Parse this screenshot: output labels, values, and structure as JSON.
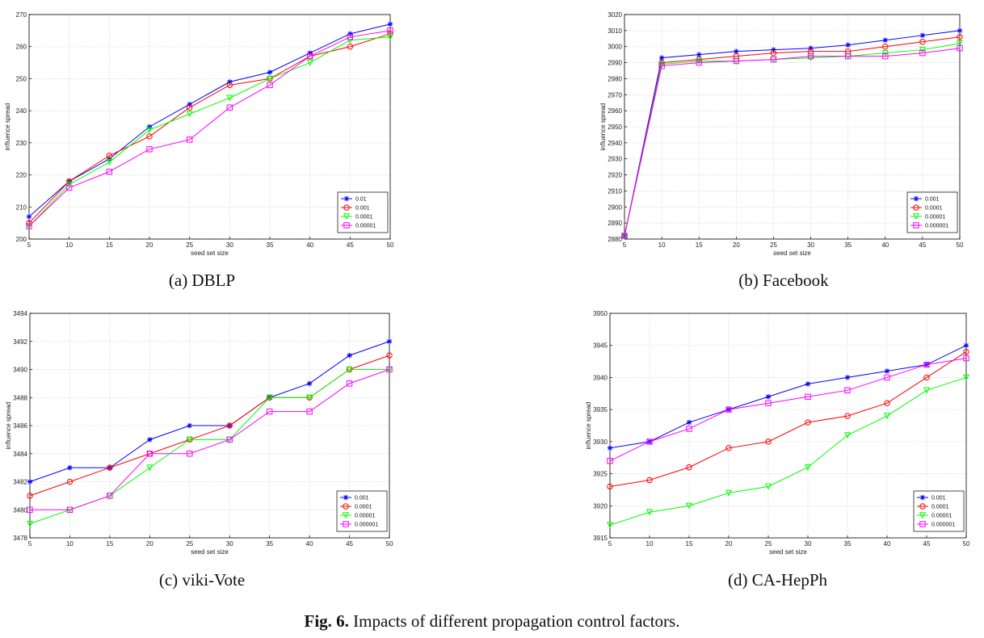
{
  "figure": {
    "label": "Fig. 6.",
    "text": "Impacts of different propagation control factors."
  },
  "panels": [
    {
      "caption": "(a) DBLP",
      "chart_data": {
        "type": "line",
        "title": "",
        "xlabel": "seed set size",
        "ylabel": "influence spread",
        "x": [
          5,
          10,
          15,
          20,
          25,
          30,
          35,
          40,
          45,
          50
        ],
        "xlim": [
          5,
          50
        ],
        "ylim": [
          200,
          270
        ],
        "yticks": [
          200,
          210,
          220,
          230,
          240,
          250,
          260,
          270
        ],
        "grid": true,
        "legend_position": "bottom-right",
        "series": [
          {
            "name": "0.01",
            "color": "#0000ff",
            "marker": "star",
            "values": [
              207,
              218,
              225,
              235,
              242,
              249,
              252,
              258,
              264,
              267
            ]
          },
          {
            "name": "0.001",
            "color": "#ff0000",
            "marker": "circle",
            "values": [
              205,
              218,
              226,
              232,
              241,
              248,
              250,
              257,
              260,
              264
            ]
          },
          {
            "name": "0.0001",
            "color": "#00ff00",
            "marker": "triangle-down",
            "values": [
              204,
              217,
              224,
              234,
              239,
              244,
              250,
              255,
              262,
              263
            ]
          },
          {
            "name": "0.00001",
            "color": "#ff00ff",
            "marker": "square",
            "values": [
              204,
              216,
              221,
              228,
              231,
              241,
              248,
              257,
              263,
              265
            ]
          }
        ]
      }
    },
    {
      "caption": "(b) Facebook",
      "chart_data": {
        "type": "line",
        "title": "",
        "xlabel": "seed set size",
        "ylabel": "influence spread",
        "x": [
          5,
          10,
          15,
          20,
          25,
          30,
          35,
          40,
          45,
          50
        ],
        "xlim": [
          5,
          50
        ],
        "ylim": [
          2880,
          3020
        ],
        "yticks": [
          2880,
          2890,
          2900,
          2910,
          2920,
          2930,
          2940,
          2950,
          2960,
          2970,
          2980,
          2990,
          3000,
          3010,
          3020
        ],
        "grid": true,
        "legend_position": "bottom-right",
        "series": [
          {
            "name": "0.001",
            "color": "#0000ff",
            "marker": "star",
            "values": [
              2882,
              2993,
              2995,
              2997,
              2998,
              2999,
              3001,
              3004,
              3007,
              3010
            ]
          },
          {
            "name": "0.0001",
            "color": "#ff0000",
            "marker": "circle",
            "values": [
              2882,
              2990,
              2992,
              2994,
              2996,
              2997,
              2997,
              3000,
              3003,
              3006
            ]
          },
          {
            "name": "0.00001",
            "color": "#00ff00",
            "marker": "triangle-down",
            "values": [
              2882,
              2989,
              2991,
              2991,
              2992,
              2993,
              2994,
              2996,
              2998,
              3002
            ]
          },
          {
            "name": "0.000001",
            "color": "#ff00ff",
            "marker": "square",
            "values": [
              2882,
              2988,
              2990,
              2991,
              2992,
              2994,
              2994,
              2994,
              2996,
              2999
            ]
          }
        ]
      }
    },
    {
      "caption": "(c) viki-Vote",
      "chart_data": {
        "type": "line",
        "title": "",
        "xlabel": "seed set size",
        "ylabel": "influence spread",
        "x": [
          5,
          10,
          15,
          20,
          25,
          30,
          35,
          40,
          45,
          50
        ],
        "xlim": [
          5,
          50
        ],
        "ylim": [
          3478,
          3494
        ],
        "yticks": [
          3478,
          3480,
          3482,
          3484,
          3486,
          3488,
          3490,
          3492,
          3494
        ],
        "grid": true,
        "legend_position": "bottom-right",
        "series": [
          {
            "name": "0.001",
            "color": "#0000ff",
            "marker": "star",
            "values": [
              3482,
              3483,
              3483,
              3485,
              3486,
              3486,
              3488,
              3489,
              3491,
              3492
            ]
          },
          {
            "name": "0.0001",
            "color": "#ff0000",
            "marker": "circle",
            "values": [
              3481,
              3482,
              3483,
              3484,
              3485,
              3486,
              3488,
              3488,
              3490,
              3491
            ]
          },
          {
            "name": "0.00001",
            "color": "#00ff00",
            "marker": "triangle-down",
            "values": [
              3479,
              3480,
              3481,
              3483,
              3485,
              3485,
              3488,
              3488,
              3490,
              3490
            ]
          },
          {
            "name": "0.000001",
            "color": "#ff00ff",
            "marker": "square",
            "values": [
              3480,
              3480,
              3481,
              3484,
              3484,
              3485,
              3487,
              3487,
              3489,
              3490
            ]
          }
        ]
      }
    },
    {
      "caption": "(d) CA-HepPh",
      "chart_data": {
        "type": "line",
        "title": "",
        "xlabel": "seed set size",
        "ylabel": "influence spread",
        "x": [
          5,
          10,
          15,
          20,
          25,
          30,
          35,
          40,
          45,
          50
        ],
        "xlim": [
          5,
          50
        ],
        "ylim": [
          3915,
          3950
        ],
        "yticks": [
          3915,
          3920,
          3925,
          3930,
          3935,
          3940,
          3945,
          3950
        ],
        "grid": true,
        "legend_position": "bottom-right",
        "series": [
          {
            "name": "0.001",
            "color": "#0000ff",
            "marker": "star",
            "values": [
              3929,
              3930,
              3933,
              3935,
              3937,
              3939,
              3940,
              3941,
              3942,
              3945
            ]
          },
          {
            "name": "0.0001",
            "color": "#ff0000",
            "marker": "circle",
            "values": [
              3923,
              3924,
              3926,
              3929,
              3930,
              3933,
              3934,
              3936,
              3940,
              3944
            ]
          },
          {
            "name": "0.00001",
            "color": "#00ff00",
            "marker": "triangle-down",
            "values": [
              3917,
              3919,
              3920,
              3922,
              3923,
              3926,
              3931,
              3934,
              3938,
              3940
            ]
          },
          {
            "name": "0.000001",
            "color": "#ff00ff",
            "marker": "square",
            "values": [
              3927,
              3930,
              3932,
              3935,
              3936,
              3937,
              3938,
              3940,
              3942,
              3943
            ]
          }
        ]
      }
    }
  ]
}
